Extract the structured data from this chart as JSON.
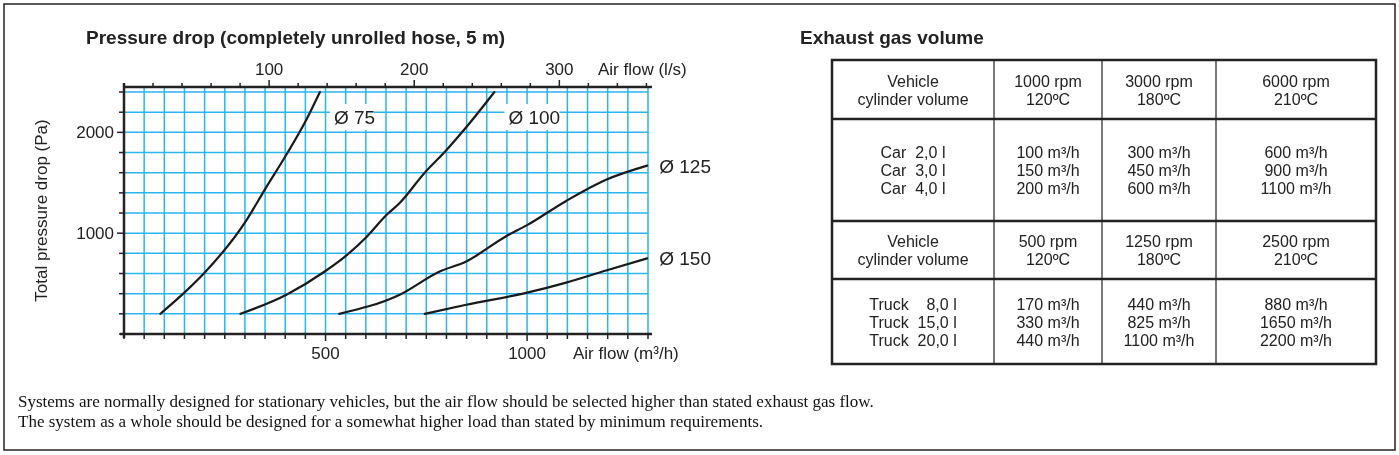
{
  "chart_data": [
    {
      "type": "line",
      "title": "Pressure drop (completely unrolled hose, 5 m)",
      "xlabel": "Air flow (m³/h)",
      "ylabel": "Total pressure drop (Pa)",
      "x2label": "Air flow (l/s)",
      "xlim": [
        0,
        1300
      ],
      "ylim": [
        0,
        2450
      ],
      "x2lim": [
        0,
        361.1
      ],
      "xticks": [
        {
          "value": 0,
          "label": null
        },
        {
          "value": 50,
          "label": null
        },
        {
          "value": 100,
          "label": null
        },
        {
          "value": 150,
          "label": null
        },
        {
          "value": 200,
          "label": null
        },
        {
          "value": 250,
          "label": null
        },
        {
          "value": 300,
          "label": null
        },
        {
          "value": 350,
          "label": null
        },
        {
          "value": 400,
          "label": null
        },
        {
          "value": 450,
          "label": null
        },
        500,
        {
          "value": 550,
          "label": null
        },
        {
          "value": 600,
          "label": null
        },
        {
          "value": 650,
          "label": null
        },
        {
          "value": 700,
          "label": null
        },
        {
          "value": 750,
          "label": null
        },
        {
          "value": 800,
          "label": null
        },
        {
          "value": 850,
          "label": null
        },
        {
          "value": 900,
          "label": null
        },
        {
          "value": 950,
          "label": null
        },
        1000,
        {
          "value": 1050,
          "label": null
        },
        {
          "value": 1100,
          "label": null
        },
        {
          "value": 1150,
          "label": null
        },
        {
          "value": 1200,
          "label": null
        },
        {
          "value": 1250,
          "label": null
        },
        {
          "value": 1300,
          "label": null
        }
      ],
      "yticks": [
        {
          "value": 0,
          "label": null
        },
        {
          "value": 200,
          "label": null
        },
        {
          "value": 400,
          "label": null
        },
        {
          "value": 600,
          "label": null
        },
        {
          "value": 800,
          "label": null
        },
        1000,
        {
          "value": 1200,
          "label": null
        },
        {
          "value": 1400,
          "label": null
        },
        {
          "value": 1600,
          "label": null
        },
        {
          "value": 1800,
          "label": null
        },
        2000,
        {
          "value": 2200,
          "label": null
        },
        {
          "value": 2400,
          "label": null
        }
      ],
      "x2ticks": [
        {
          "value": 0,
          "label": null
        },
        {
          "value": 20,
          "label": null
        },
        {
          "value": 40,
          "label": null
        },
        {
          "value": 60,
          "label": null
        },
        {
          "value": 80,
          "label": null
        },
        100,
        {
          "value": 120,
          "label": null
        },
        {
          "value": 140,
          "label": null
        },
        {
          "value": 160,
          "label": null
        },
        {
          "value": 180,
          "label": null
        },
        200,
        {
          "value": 220,
          "label": null
        },
        {
          "value": 240,
          "label": null
        },
        {
          "value": 260,
          "label": null
        },
        {
          "value": 280,
          "label": null
        },
        300,
        {
          "value": 320,
          "label": null
        },
        {
          "value": 340,
          "label": null
        },
        {
          "value": 360,
          "label": null
        }
      ],
      "grid": true,
      "marker": "none",
      "line_style": "solid",
      "series": [
        {
          "name": "Ø 75",
          "color": "#1a1a1a",
          "x": [
            90,
            147,
            198,
            304,
            349,
            403,
            453,
            486
          ],
          "values": [
            200,
            400,
            600,
            1130,
            1430,
            1780,
            2130,
            2400
          ]
        },
        {
          "name": "Ø 100",
          "color": "#1a1a1a",
          "x": [
            289,
            403,
            498,
            552,
            601,
            651,
            684,
            746,
            799,
            849,
            919
          ],
          "values": [
            200,
            390,
            620,
            780,
            960,
            1180,
            1300,
            1600,
            1820,
            2050,
            2400
          ]
        },
        {
          "name": "Ø 125",
          "color": "#1a1a1a",
          "x": [
            534,
            684,
            783,
            849,
            948,
            1000,
            1097,
            1196,
            1298
          ],
          "values": [
            200,
            390,
            620,
            720,
            970,
            1080,
            1320,
            1530,
            1670
          ]
        },
        {
          "name": "Ø 150",
          "color": "#1a1a1a",
          "x": [
            746,
            849,
            1000,
            1097,
            1196,
            1298
          ],
          "values": [
            200,
            290,
            410,
            510,
            630,
            750
          ]
        }
      ],
      "annotations": [
        "Systems are normally designed for stationary vehicles, but the air flow should be selected higher than stated exhaust gas flow.",
        "The system as a whole should be designed for a somewhat higher load than stated by minimum requirements."
      ]
    },
    {
      "type": "other",
      "title": "Exhaust gas volume",
      "annotations": [
        "Vehicle\ncylinder volume",
        "1000 rpm\n120ºC",
        "3000 rpm\n180ºC",
        "6000 rpm\n210ºC",
        "Car  2,0 l\nCar  3,0 l\nCar  4,0 l",
        "100 m³/h\n150 m³/h\n200 m³/h",
        "300 m³/h\n450 m³/h\n600 m³/h",
        "600 m³/h\n900 m³/h\n1100 m³/h",
        "Vehicle\ncylinder volume",
        "500 rpm\n120ºC",
        "1250 rpm\n180ºC",
        "2500 rpm\n210ºC",
        "Truck    8,0 l\nTruck  15,0 l\nTruck  20,0 l",
        "170 m³/h\n330 m³/h\n440 m³/h",
        "440 m³/h\n825 m³/h\n1100 m³/h",
        "880 m³/h\n1650 m³/h\n2200 m³/h"
      ]
    }
  ]
}
